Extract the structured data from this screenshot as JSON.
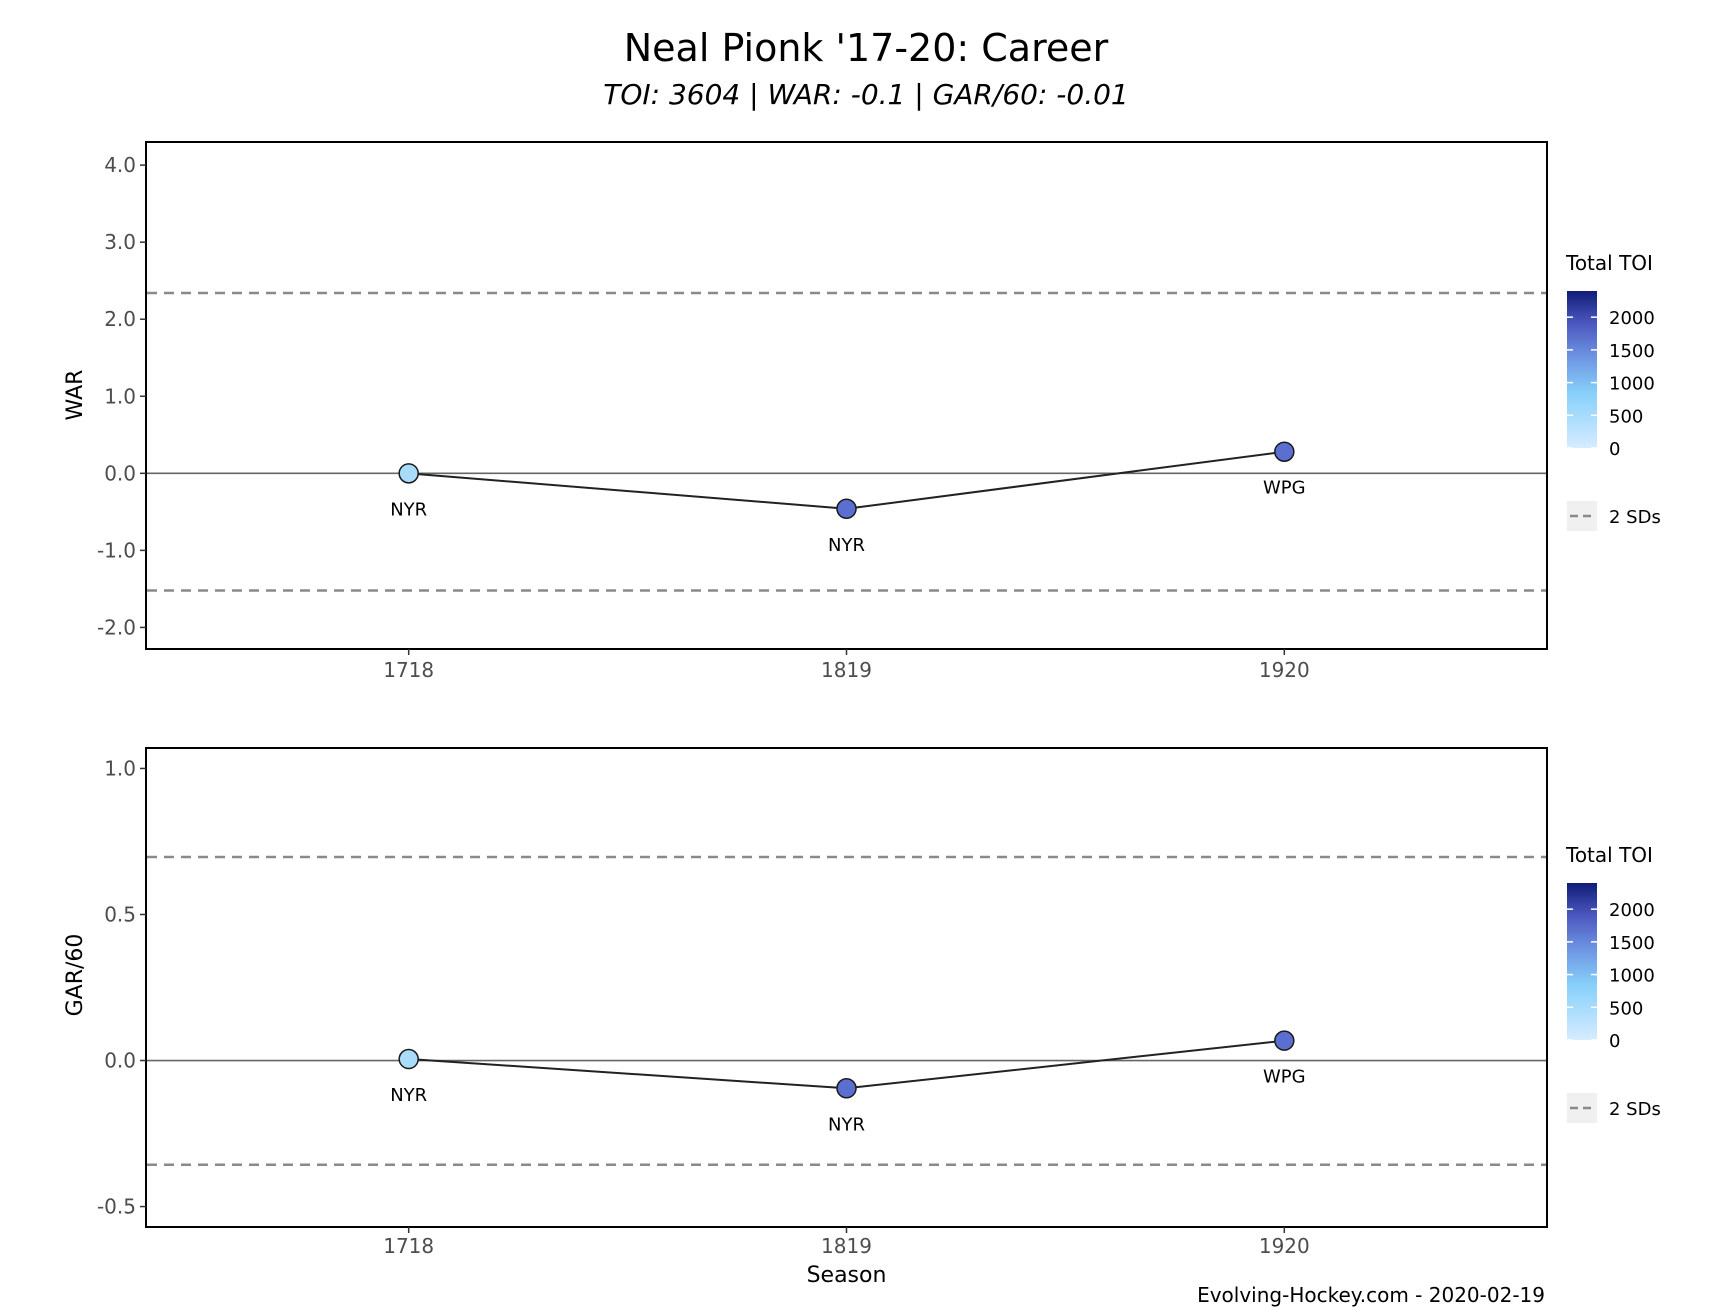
{
  "header": {
    "title": "Neal Pionk '17-20: Career",
    "subtitle": "TOI: 3604 | WAR: -0.1 | GAR/60: -0.01"
  },
  "footer": {
    "credit": "Evolving-Hockey.com - 2020-02-19"
  },
  "colors": {
    "line": "#222222",
    "zero_line": "#666666",
    "sd_line": "#8a8a8a",
    "toi_low": "#d6ecff",
    "toi_high": "#101c78",
    "point_1718": "#a9dcfb",
    "point_other": "#5a6fcf"
  },
  "chart_data": [
    {
      "type": "line",
      "ylabel": "WAR",
      "xlabel": "",
      "categories": [
        "1718",
        "1819",
        "1920"
      ],
      "values": [
        0.0,
        -0.46,
        0.28
      ],
      "point_labels": [
        "NYR",
        "NYR",
        "WPG"
      ],
      "toi": [
        88,
        1860,
        1656
      ],
      "yticks": [
        "4.0",
        "3.0",
        "2.0",
        "1.0",
        "0.0",
        "-1.0",
        "-2.0"
      ],
      "ytick_values": [
        4,
        3,
        2,
        1,
        0,
        -1,
        -2
      ],
      "ylim": [
        -2.28,
        4.3
      ],
      "sd_lines": [
        2.34,
        -1.52
      ],
      "legend": {
        "title": "Total TOI",
        "ticks": [
          "2000",
          "1500",
          "1000",
          "500",
          "0"
        ],
        "tick_values": [
          2000,
          1500,
          1000,
          500,
          0
        ],
        "range": [
          0,
          2400
        ],
        "sd_label": "2 SDs",
        "position": "right"
      }
    },
    {
      "type": "line",
      "ylabel": "GAR/60",
      "xlabel": "Season",
      "categories": [
        "1718",
        "1819",
        "1920"
      ],
      "values": [
        0.005,
        -0.095,
        0.068
      ],
      "point_labels": [
        "NYR",
        "NYR",
        "WPG"
      ],
      "toi": [
        88,
        1860,
        1656
      ],
      "yticks": [
        "1.0",
        "0.5",
        "0.0",
        "-0.5"
      ],
      "ytick_values": [
        1.0,
        0.5,
        0.0,
        -0.5
      ],
      "ylim": [
        -0.57,
        1.07
      ],
      "sd_lines": [
        0.697,
        -0.357
      ],
      "legend": {
        "title": "Total TOI",
        "ticks": [
          "2000",
          "1500",
          "1000",
          "500",
          "0"
        ],
        "tick_values": [
          2000,
          1500,
          1000,
          500,
          0
        ],
        "range": [
          0,
          2400
        ],
        "sd_label": "2 SDs",
        "position": "right"
      }
    }
  ]
}
